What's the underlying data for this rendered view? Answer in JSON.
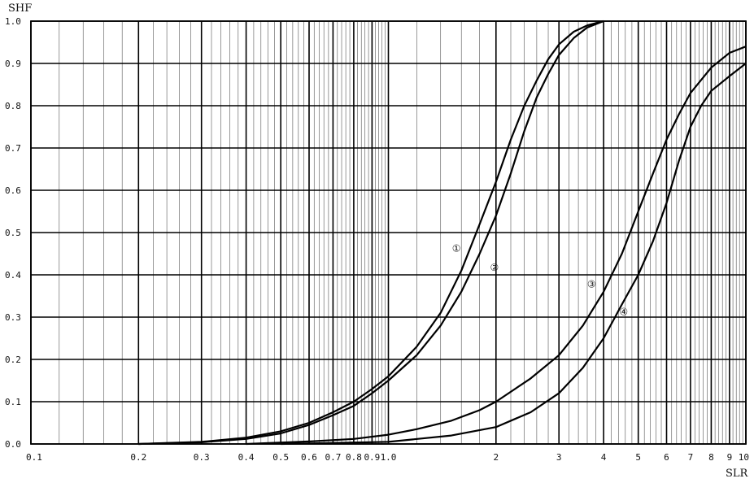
{
  "chart_data": {
    "type": "line",
    "title": "",
    "xlabel": "SLR",
    "ylabel": "SHF",
    "x_scale": "log",
    "xlim": [
      0.1,
      10
    ],
    "ylim": [
      0.0,
      1.0
    ],
    "grid": true,
    "x_ticks": [
      {
        "v": 0.1,
        "label": "0.1"
      },
      {
        "v": 0.2,
        "label": "0.2"
      },
      {
        "v": 0.3,
        "label": "0.3"
      },
      {
        "v": 0.4,
        "label": "0.4"
      },
      {
        "v": 0.5,
        "label": "0.5"
      },
      {
        "v": 0.6,
        "label": "0.6"
      },
      {
        "v": 0.7,
        "label": "0.7"
      },
      {
        "v": 0.8,
        "label": "0.8"
      },
      {
        "v": 0.9,
        "label": "0.9"
      },
      {
        "v": 1.0,
        "label": "1.0"
      },
      {
        "v": 2,
        "label": "2"
      },
      {
        "v": 3,
        "label": "3"
      },
      {
        "v": 4,
        "label": "4"
      },
      {
        "v": 5,
        "label": "5"
      },
      {
        "v": 6,
        "label": "6"
      },
      {
        "v": 7,
        "label": "7"
      },
      {
        "v": 8,
        "label": "8"
      },
      {
        "v": 9,
        "label": "9"
      },
      {
        "v": 10,
        "label": "10"
      }
    ],
    "y_ticks": [
      {
        "v": 0.0,
        "label": "0.0"
      },
      {
        "v": 0.1,
        "label": "0.1"
      },
      {
        "v": 0.2,
        "label": "0.2"
      },
      {
        "v": 0.3,
        "label": "0.3"
      },
      {
        "v": 0.4,
        "label": "0.4"
      },
      {
        "v": 0.5,
        "label": "0.5"
      },
      {
        "v": 0.6,
        "label": "0.6"
      },
      {
        "v": 0.7,
        "label": "0.7"
      },
      {
        "v": 0.8,
        "label": "0.8"
      },
      {
        "v": 0.9,
        "label": "0.9"
      },
      {
        "v": 1.0,
        "label": "1.0"
      }
    ],
    "series": [
      {
        "label": "①",
        "label_at": [
          1.55,
          0.455
        ],
        "points": [
          [
            0.2,
            0.0
          ],
          [
            0.3,
            0.005
          ],
          [
            0.4,
            0.015
          ],
          [
            0.5,
            0.03
          ],
          [
            0.6,
            0.05
          ],
          [
            0.7,
            0.075
          ],
          [
            0.8,
            0.1
          ],
          [
            0.9,
            0.13
          ],
          [
            1.0,
            0.16
          ],
          [
            1.2,
            0.23
          ],
          [
            1.4,
            0.31
          ],
          [
            1.6,
            0.41
          ],
          [
            1.8,
            0.52
          ],
          [
            2.0,
            0.62
          ],
          [
            2.2,
            0.72
          ],
          [
            2.4,
            0.8
          ],
          [
            2.6,
            0.86
          ],
          [
            2.8,
            0.91
          ],
          [
            3.0,
            0.945
          ],
          [
            3.3,
            0.975
          ],
          [
            3.6,
            0.99
          ],
          [
            4.0,
            1.0
          ]
        ]
      },
      {
        "label": "②",
        "label_at": [
          1.98,
          0.41
        ],
        "points": [
          [
            0.2,
            0.0
          ],
          [
            0.3,
            0.004
          ],
          [
            0.4,
            0.012
          ],
          [
            0.5,
            0.025
          ],
          [
            0.6,
            0.045
          ],
          [
            0.7,
            0.068
          ],
          [
            0.8,
            0.09
          ],
          [
            0.9,
            0.12
          ],
          [
            1.0,
            0.15
          ],
          [
            1.2,
            0.21
          ],
          [
            1.4,
            0.28
          ],
          [
            1.6,
            0.36
          ],
          [
            1.8,
            0.45
          ],
          [
            2.0,
            0.54
          ],
          [
            2.2,
            0.64
          ],
          [
            2.4,
            0.74
          ],
          [
            2.6,
            0.82
          ],
          [
            2.8,
            0.875
          ],
          [
            3.0,
            0.92
          ],
          [
            3.3,
            0.96
          ],
          [
            3.6,
            0.985
          ],
          [
            4.0,
            1.0
          ]
        ]
      },
      {
        "label": "③",
        "label_at": [
          3.7,
          0.37
        ],
        "points": [
          [
            0.4,
            0.0
          ],
          [
            0.6,
            0.006
          ],
          [
            0.8,
            0.012
          ],
          [
            1.0,
            0.022
          ],
          [
            1.2,
            0.035
          ],
          [
            1.5,
            0.055
          ],
          [
            1.8,
            0.08
          ],
          [
            2.0,
            0.1
          ],
          [
            2.5,
            0.155
          ],
          [
            3.0,
            0.21
          ],
          [
            3.5,
            0.28
          ],
          [
            4.0,
            0.36
          ],
          [
            4.5,
            0.45
          ],
          [
            5.0,
            0.55
          ],
          [
            5.5,
            0.64
          ],
          [
            6.0,
            0.72
          ],
          [
            6.5,
            0.78
          ],
          [
            7.0,
            0.83
          ],
          [
            8.0,
            0.89
          ],
          [
            9.0,
            0.925
          ],
          [
            10.0,
            0.94
          ]
        ]
      },
      {
        "label": "④",
        "label_at": [
          4.55,
          0.305
        ],
        "points": [
          [
            0.5,
            0.0
          ],
          [
            1.0,
            0.005
          ],
          [
            1.5,
            0.02
          ],
          [
            2.0,
            0.04
          ],
          [
            2.5,
            0.075
          ],
          [
            3.0,
            0.12
          ],
          [
            3.5,
            0.18
          ],
          [
            4.0,
            0.25
          ],
          [
            4.5,
            0.33
          ],
          [
            5.0,
            0.4
          ],
          [
            5.5,
            0.48
          ],
          [
            6.0,
            0.57
          ],
          [
            6.5,
            0.67
          ],
          [
            7.0,
            0.75
          ],
          [
            7.5,
            0.8
          ],
          [
            8.0,
            0.835
          ],
          [
            9.0,
            0.87
          ],
          [
            10.0,
            0.9
          ]
        ]
      }
    ]
  }
}
